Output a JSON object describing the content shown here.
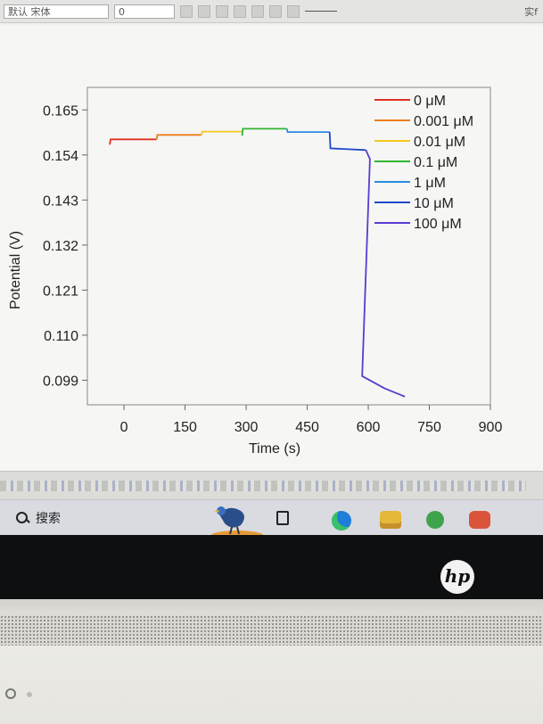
{
  "toolbar": {
    "font_name": "默认 宋体",
    "font_size": "0",
    "right_label": "实f"
  },
  "taskbar": {
    "search_label": "搜索"
  },
  "laptop": {
    "brand": "hp"
  },
  "chart_data": {
    "type": "line",
    "title": "",
    "xlabel": "Time (s)",
    "ylabel": "Potential (V)",
    "xlim": [
      -90,
      900
    ],
    "ylim": [
      0.093,
      0.1705
    ],
    "x_ticks": [
      "0",
      "150",
      "300",
      "450",
      "600",
      "750",
      "900"
    ],
    "x_tick_values": [
      0,
      150,
      300,
      450,
      600,
      750,
      900
    ],
    "y_ticks": [
      "0.165",
      "0.154",
      "0.143",
      "0.132",
      "0.121",
      "0.110",
      "0.099"
    ],
    "y_tick_values": [
      0.165,
      0.154,
      0.143,
      0.132,
      0.121,
      0.11,
      0.099
    ],
    "legend_position": "top-right",
    "grid": false,
    "series": [
      {
        "name": "0 μM",
        "color": "#e0301e",
        "points": [
          [
            -35,
            0.1565
          ],
          [
            -33,
            0.1578
          ],
          [
            80,
            0.1578
          ]
        ]
      },
      {
        "name": "0.001 μM",
        "color": "#ef7d1a",
        "points": [
          [
            80,
            0.1578
          ],
          [
            82,
            0.1589
          ],
          [
            190,
            0.1589
          ]
        ]
      },
      {
        "name": "0.01 μM",
        "color": "#f4c81b",
        "points": [
          [
            190,
            0.1589
          ],
          [
            192,
            0.1597
          ],
          [
            290,
            0.1597
          ]
        ]
      },
      {
        "name": "0.1 μM",
        "color": "#2fb632",
        "points": [
          [
            290,
            0.1587
          ],
          [
            292,
            0.1604
          ],
          [
            400,
            0.1604
          ]
        ]
      },
      {
        "name": "1 μM",
        "color": "#2a8ae0",
        "points": [
          [
            400,
            0.1604
          ],
          [
            402,
            0.1596
          ],
          [
            505,
            0.1596
          ]
        ]
      },
      {
        "name": "10 μM",
        "color": "#1f48c8",
        "points": [
          [
            505,
            0.1596
          ],
          [
            507,
            0.1556
          ],
          [
            594,
            0.1552
          ]
        ]
      },
      {
        "name": "100 μM",
        "color": "#5a3ad0",
        "points": [
          [
            594,
            0.1552
          ],
          [
            604,
            0.153
          ],
          [
            585,
            0.1
          ],
          [
            640,
            0.097
          ],
          [
            690,
            0.095
          ]
        ]
      }
    ]
  }
}
